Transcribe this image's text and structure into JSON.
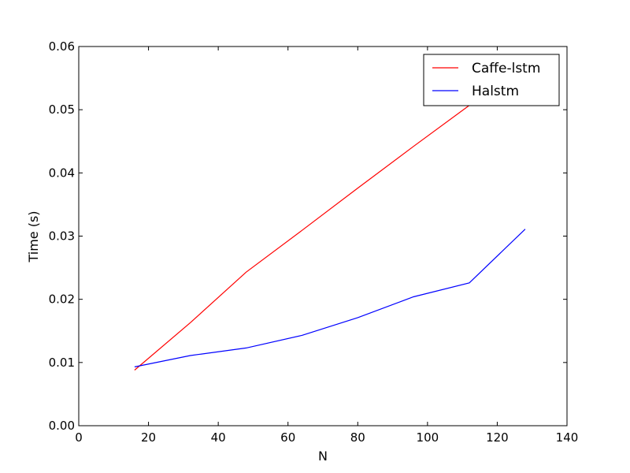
{
  "chart_data": {
    "type": "line",
    "title": "",
    "xlabel": "N",
    "ylabel": "Time (s)",
    "xlim": [
      0,
      140
    ],
    "ylim": [
      0,
      0.06
    ],
    "xticks": [
      0,
      20,
      40,
      60,
      80,
      100,
      120,
      140
    ],
    "yticks": [
      0.0,
      0.01,
      0.02,
      0.03,
      0.04,
      0.05,
      0.06
    ],
    "xtick_labels": [
      "0",
      "20",
      "40",
      "60",
      "80",
      "100",
      "120",
      "140"
    ],
    "ytick_labels": [
      "0.00",
      "0.01",
      "0.02",
      "0.03",
      "0.04",
      "0.05",
      "0.06"
    ],
    "grid": false,
    "legend_position": "top-right",
    "series": [
      {
        "name": "Caffe-lstm",
        "color": "#ff0000",
        "x": [
          16,
          32,
          48,
          64,
          80,
          96,
          112,
          128
        ],
        "y": [
          0.0088,
          0.0163,
          0.0243,
          0.0309,
          0.0376,
          0.0442,
          0.0507,
          0.0573
        ]
      },
      {
        "name": "Halstm",
        "color": "#0000ff",
        "x": [
          16,
          32,
          48,
          64,
          80,
          96,
          112,
          128
        ],
        "y": [
          0.0093,
          0.0111,
          0.0123,
          0.0143,
          0.0171,
          0.0204,
          0.0226,
          0.0311
        ]
      }
    ]
  }
}
